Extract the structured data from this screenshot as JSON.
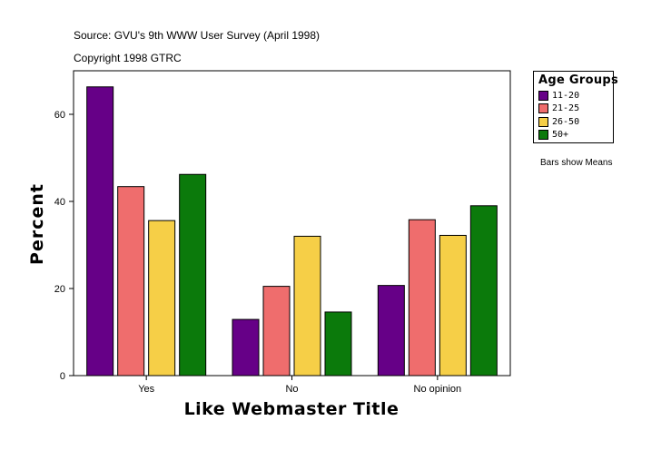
{
  "header": {
    "source": "Source: GVU's 9th WWW User Survey (April 1998)",
    "copyright": "Copyright 1998 GTRC"
  },
  "legend": {
    "title": "Age Groups",
    "placement": "right"
  },
  "note": "Bars show Means",
  "chart_data": {
    "type": "bar",
    "title": "",
    "xlabel": "Like Webmaster Title",
    "ylabel": "Percent",
    "categories": [
      "Yes",
      "No",
      "No opinion"
    ],
    "series": [
      {
        "name": "11-20",
        "color": "#660087",
        "values": [
          66.3,
          12.9,
          20.7
        ]
      },
      {
        "name": "21-25",
        "color": "#ef6d6d",
        "values": [
          43.4,
          20.5,
          35.8
        ]
      },
      {
        "name": "26-50",
        "color": "#f6cf47",
        "values": [
          35.6,
          32.0,
          32.2
        ]
      },
      {
        "name": "50+",
        "color": "#0b7a0b",
        "values": [
          46.2,
          14.6,
          39.0
        ]
      }
    ],
    "yticks": [
      "0",
      "20",
      "40",
      "60"
    ],
    "ylim": [
      0,
      70
    ],
    "grid": false,
    "legend_placement": "right"
  }
}
